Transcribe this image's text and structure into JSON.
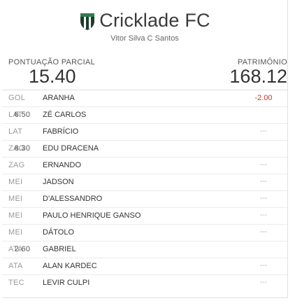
{
  "team": {
    "name": "Cricklade FC",
    "owner": "Vitor Silva C Santos",
    "shield_colors": {
      "primary": "#1f3b2f",
      "stripe": "#ffffff",
      "accent": "#2e7d4f"
    }
  },
  "scores": {
    "partial_label": "PONTUAÇÃO PARCIAL",
    "partial_value": "15.40",
    "assets_label": "PATRIMÔNIO",
    "assets_value": "168.12"
  },
  "players": [
    {
      "pos": "GOL",
      "name": "ARANHA",
      "points": "-2.00",
      "kind": "neg"
    },
    {
      "pos": "LAT",
      "name": "ZÉ CARLOS",
      "points": "6.50",
      "kind": "pos"
    },
    {
      "pos": "LAT",
      "name": "FABRÍCIO",
      "points": "---",
      "kind": "none"
    },
    {
      "pos": "ZAG",
      "name": "EDU DRACENA",
      "points": "8.30",
      "kind": "pos"
    },
    {
      "pos": "ZAG",
      "name": "ERNANDO",
      "points": "---",
      "kind": "none"
    },
    {
      "pos": "MEI",
      "name": "JADSON",
      "points": "---",
      "kind": "none"
    },
    {
      "pos": "MEI",
      "name": "D'ALESSANDRO",
      "points": "---",
      "kind": "none"
    },
    {
      "pos": "MEI",
      "name": "PAULO HENRIQUE GANSO",
      "points": "---",
      "kind": "none"
    },
    {
      "pos": "MEI",
      "name": "DÁTOLO",
      "points": "---",
      "kind": "none"
    },
    {
      "pos": "ATA",
      "name": "GABRIEL",
      "points": "2.60",
      "kind": "pos"
    },
    {
      "pos": "ATA",
      "name": "ALAN KARDEC",
      "points": "---",
      "kind": "none"
    },
    {
      "pos": "TEC",
      "name": "LEVIR CULPI",
      "points": "---",
      "kind": "none"
    }
  ]
}
